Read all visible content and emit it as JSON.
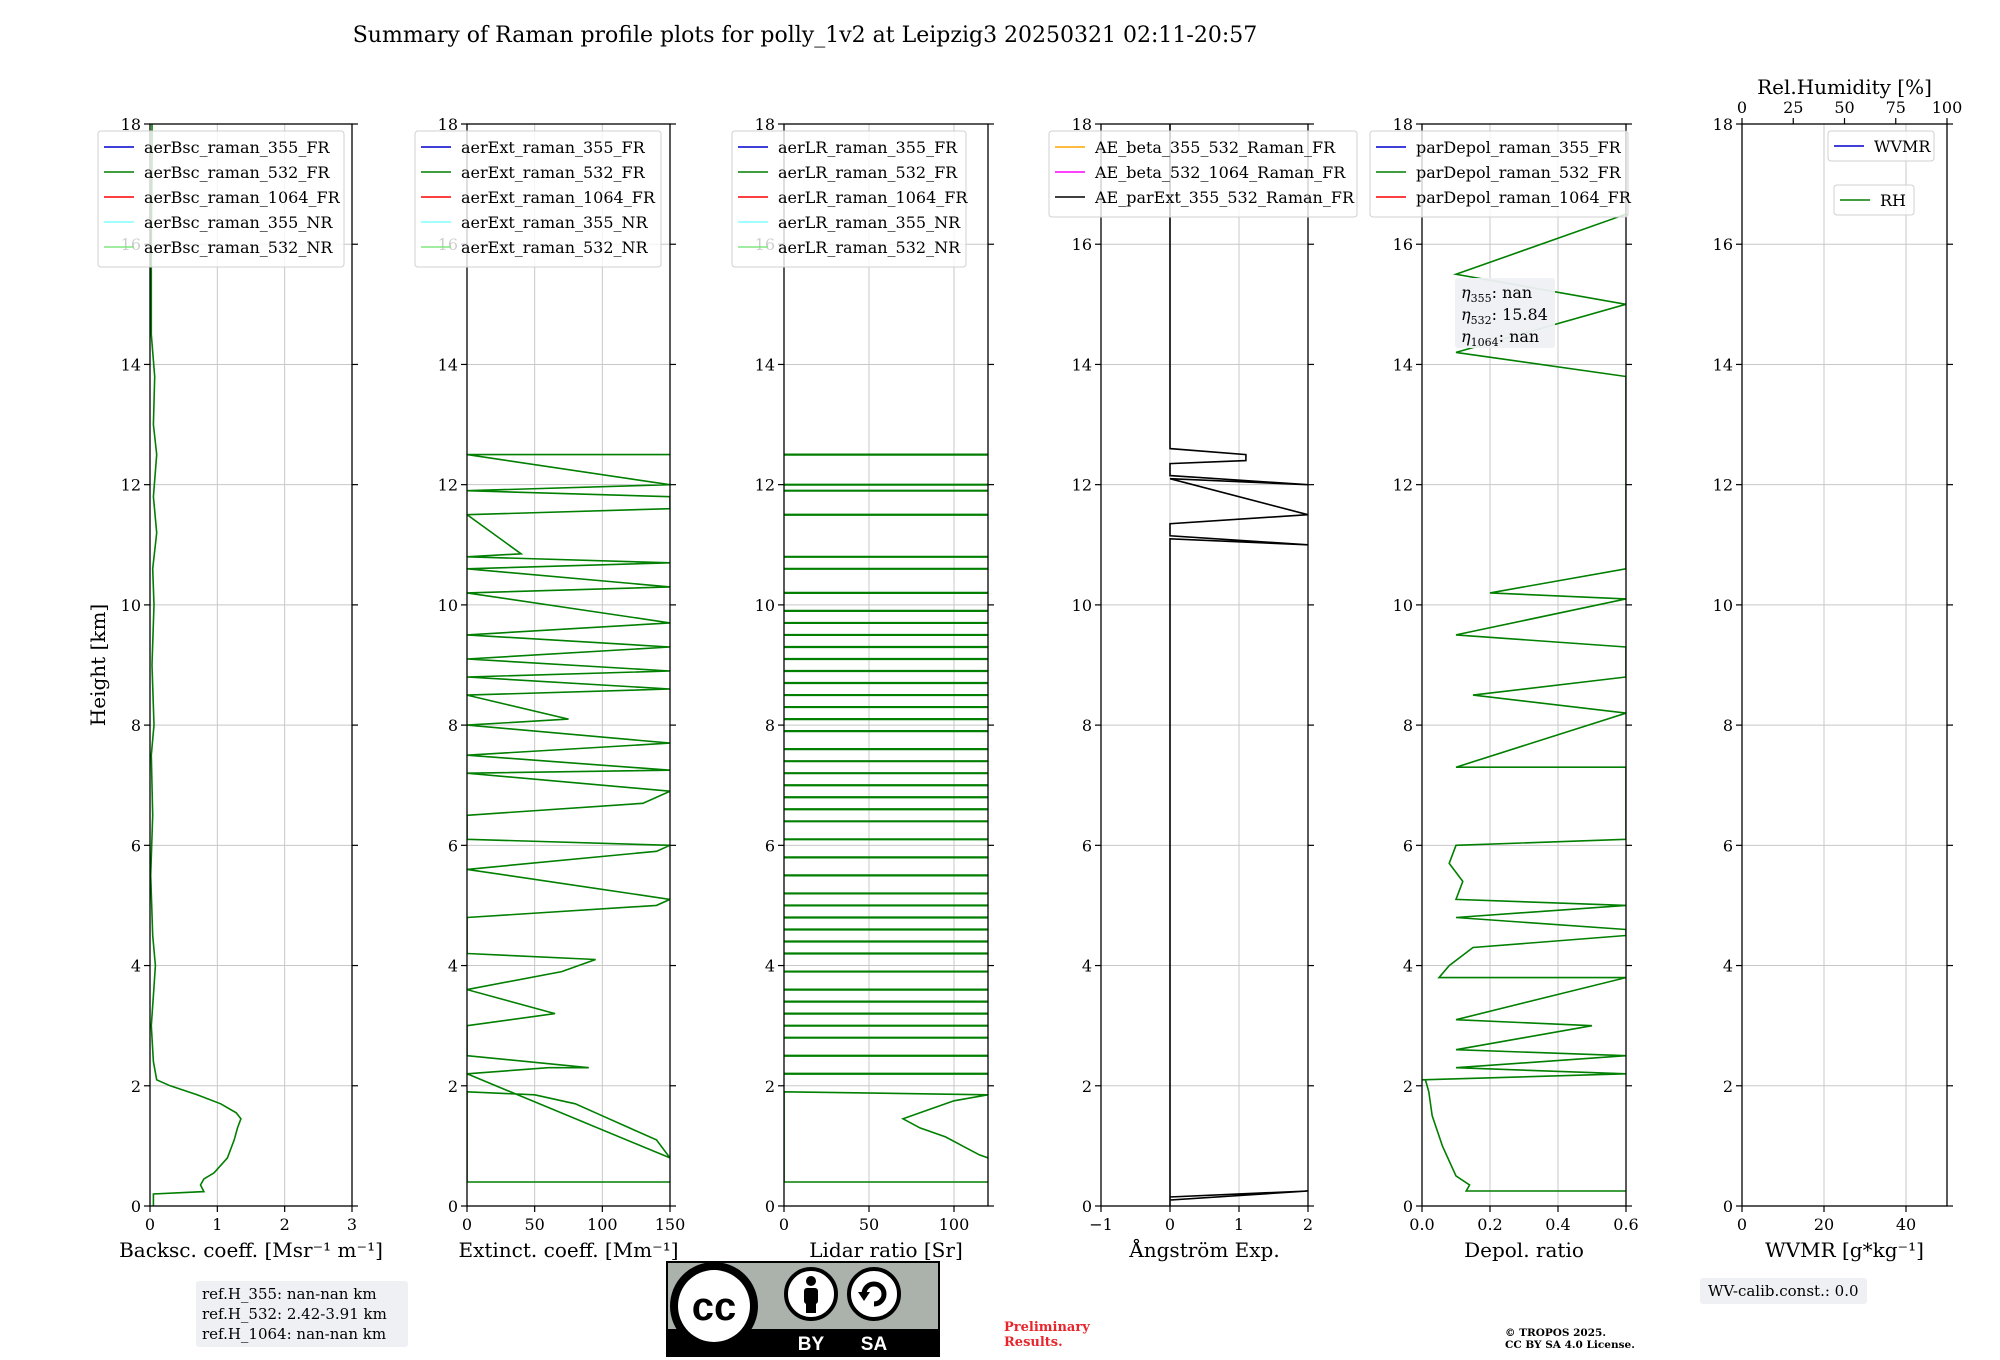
{
  "figure_title": "Summary of Raman profile plots for polly_1v2 at Leipzig3 20250321 02:11-20:57",
  "ref_heights": [
    "ref.H_355: nan-nan km",
    "ref.H_532: 2.42-3.91 km",
    "ref.H_1064: nan-nan km"
  ],
  "wv_calib": "WV-calib.const.: 0.0",
  "eta_lines": [
    {
      "sym": "η",
      "sub": "355",
      "val": ": nan"
    },
    {
      "sym": "η",
      "sub": "532",
      "val": ": 15.84"
    },
    {
      "sym": "η",
      "sub": "1064",
      "val": ": nan"
    }
  ],
  "license_badge": {
    "by": "BY",
    "sa": "SA"
  },
  "preliminary": [
    "Preliminary",
    "Results."
  ],
  "copyright": [
    "© TROPOS 2025.",
    "CC BY SA 4.0 License."
  ],
  "colors": {
    "blue": "#0000cc",
    "green": "#007f00",
    "red": "#ff0000",
    "cyan": "#80ffff",
    "lightgreen": "#80e680",
    "orange": "#ffa500",
    "magenta": "#ff00ff",
    "black": "#000000",
    "grid": "#c8c8c8"
  },
  "chart_data": [
    {
      "type": "line",
      "xlabel": "Backsc. coeff. [Msr⁻¹ m⁻¹]",
      "ylabel": "Height [km]",
      "xlim": [
        0,
        3
      ],
      "ylim": [
        0,
        18
      ],
      "xticks": [
        "0",
        "1",
        "2",
        "3"
      ],
      "yticks": [
        "0",
        "2",
        "4",
        "6",
        "8",
        "10",
        "12",
        "14",
        "16",
        "18"
      ],
      "grid": true,
      "legend_position": "top-left",
      "series": [
        {
          "name": "aerBsc_raman_355_FR",
          "color": "blue",
          "values": []
        },
        {
          "name": "aerBsc_raman_532_FR",
          "color": "green",
          "profile": [
            [
              0.05,
              0.0
            ],
            [
              0.05,
              0.2
            ],
            [
              0.8,
              0.24
            ],
            [
              0.75,
              0.35
            ],
            [
              0.8,
              0.45
            ],
            [
              0.95,
              0.55
            ],
            [
              1.15,
              0.8
            ],
            [
              1.25,
              1.1
            ],
            [
              1.3,
              1.3
            ],
            [
              1.35,
              1.45
            ],
            [
              1.28,
              1.55
            ],
            [
              1.05,
              1.7
            ],
            [
              0.7,
              1.85
            ],
            [
              0.3,
              2.0
            ],
            [
              0.1,
              2.1
            ],
            [
              0.05,
              2.4
            ],
            [
              0.02,
              3.0
            ],
            [
              0.05,
              3.5
            ],
            [
              0.08,
              4.0
            ],
            [
              0.04,
              4.5
            ],
            [
              0.01,
              5.5
            ],
            [
              0.04,
              6.5
            ],
            [
              0.02,
              7.5
            ],
            [
              0.06,
              8.0
            ],
            [
              0.03,
              9.0
            ],
            [
              0.06,
              10.0
            ],
            [
              0.04,
              10.6
            ],
            [
              0.1,
              11.2
            ],
            [
              0.05,
              11.8
            ],
            [
              0.1,
              12.5
            ],
            [
              0.05,
              13.0
            ],
            [
              0.07,
              13.8
            ],
            [
              0.02,
              14.5
            ],
            [
              0.02,
              16.0
            ],
            [
              0.03,
              17.5
            ],
            [
              0.03,
              18.0
            ]
          ]
        },
        {
          "name": "aerBsc_raman_1064_FR",
          "color": "red",
          "values": []
        },
        {
          "name": "aerBsc_raman_355_NR",
          "color": "cyan",
          "values": []
        },
        {
          "name": "aerBsc_raman_532_NR",
          "color": "lightgreen",
          "values": []
        }
      ]
    },
    {
      "type": "line",
      "xlabel": "Extinct. coeff. [Mm⁻¹]",
      "xlim": [
        0,
        150
      ],
      "ylim": [
        0,
        18
      ],
      "xticks": [
        "0",
        "50",
        "100",
        "150"
      ],
      "yticks": [
        "0",
        "2",
        "4",
        "6",
        "8",
        "10",
        "12",
        "14",
        "16",
        "18"
      ],
      "grid": true,
      "legend_position": "top-left",
      "series": [
        {
          "name": "aerExt_raman_355_FR",
          "color": "blue",
          "values": []
        },
        {
          "name": "aerExt_raman_532_FR",
          "color": "green",
          "profile": [
            [
              150,
              0.4
            ],
            [
              0,
              0.4
            ],
            [
              0,
              1.9
            ],
            [
              50,
              1.85
            ],
            [
              80,
              1.7
            ],
            [
              100,
              1.5
            ],
            [
              120,
              1.3
            ],
            [
              140,
              1.1
            ],
            [
              150,
              0.8
            ],
            [
              0,
              2.2
            ],
            [
              60,
              2.3
            ],
            [
              90,
              2.3
            ],
            [
              0,
              2.5
            ],
            [
              0,
              3.0
            ],
            [
              65,
              3.2
            ],
            [
              0,
              3.6
            ],
            [
              70,
              3.9
            ],
            [
              95,
              4.1
            ],
            [
              0,
              4.2
            ],
            [
              0,
              4.8
            ],
            [
              140,
              5.0
            ],
            [
              150,
              5.1
            ],
            [
              0,
              5.6
            ],
            [
              140,
              5.9
            ],
            [
              150,
              6.0
            ],
            [
              0,
              6.1
            ],
            [
              0,
              6.5
            ],
            [
              130,
              6.7
            ],
            [
              150,
              6.9
            ],
            [
              0,
              7.2
            ],
            [
              150,
              7.25
            ],
            [
              0,
              7.5
            ],
            [
              150,
              7.7
            ],
            [
              0,
              8.0
            ],
            [
              75,
              8.1
            ],
            [
              0,
              8.5
            ],
            [
              150,
              8.6
            ],
            [
              0,
              8.8
            ],
            [
              150,
              8.9
            ],
            [
              0,
              9.1
            ],
            [
              150,
              9.3
            ],
            [
              0,
              9.5
            ],
            [
              150,
              9.7
            ],
            [
              0,
              10.2
            ],
            [
              150,
              10.3
            ],
            [
              0,
              10.6
            ],
            [
              150,
              10.7
            ],
            [
              0,
              10.8
            ],
            [
              40,
              10.85
            ],
            [
              0,
              11.5
            ],
            [
              150,
              11.6
            ],
            [
              150,
              11.8
            ],
            [
              0,
              11.9
            ],
            [
              150,
              12.0
            ],
            [
              0,
              12.5
            ],
            [
              150,
              12.5
            ]
          ]
        },
        {
          "name": "aerExt_raman_1064_FR",
          "color": "red",
          "values": []
        },
        {
          "name": "aerExt_raman_355_NR",
          "color": "cyan",
          "values": []
        },
        {
          "name": "aerExt_raman_532_NR",
          "color": "lightgreen",
          "values": []
        }
      ]
    },
    {
      "type": "line",
      "xlabel": "Lidar ratio [Sr]",
      "xlim": [
        0,
        120
      ],
      "ylim": [
        0,
        18
      ],
      "xticks": [
        "0",
        "50",
        "100"
      ],
      "yticks": [
        "0",
        "2",
        "4",
        "6",
        "8",
        "10",
        "12",
        "14",
        "16",
        "18"
      ],
      "grid": true,
      "legend_position": "top-left",
      "series": [
        {
          "name": "aerLR_raman_355_FR",
          "color": "blue",
          "values": []
        },
        {
          "name": "aerLR_raman_532_FR",
          "color": "green",
          "profile": [
            [
              120,
              0.4
            ],
            [
              0,
              0.4
            ],
            [
              0,
              1.9
            ],
            [
              120,
              1.85
            ],
            [
              100,
              1.75
            ],
            [
              85,
              1.6
            ],
            [
              70,
              1.45
            ],
            [
              80,
              1.3
            ],
            [
              95,
              1.15
            ],
            [
              105,
              1.0
            ],
            [
              115,
              0.85
            ],
            [
              120,
              0.8
            ]
          ],
          "hlines": [
            2.2,
            2.5,
            2.8,
            3.0,
            3.2,
            3.4,
            3.6,
            3.9,
            4.2,
            4.4,
            4.6,
            4.8,
            5.0,
            5.2,
            5.5,
            5.8,
            6.1,
            6.4,
            6.6,
            6.8,
            7.0,
            7.2,
            7.4,
            7.6,
            7.9,
            8.1,
            8.3,
            8.5,
            8.7,
            8.9,
            9.1,
            9.3,
            9.5,
            9.7,
            9.9,
            10.2,
            10.6,
            10.8,
            11.5,
            11.9,
            12.0,
            12.5
          ]
        },
        {
          "name": "aerLR_raman_1064_FR",
          "color": "red",
          "values": []
        },
        {
          "name": "aerLR_raman_355_NR",
          "color": "cyan",
          "values": []
        },
        {
          "name": "aerLR_raman_532_NR",
          "color": "lightgreen",
          "values": []
        }
      ]
    },
    {
      "type": "line",
      "xlabel": "Ångström Exp.",
      "xlim": [
        -1,
        2
      ],
      "ylim": [
        0,
        18
      ],
      "xticks": [
        "−1",
        "0",
        "1",
        "2"
      ],
      "yticks": [
        "0",
        "2",
        "4",
        "6",
        "8",
        "10",
        "12",
        "14",
        "16",
        "18"
      ],
      "grid": true,
      "legend_position": "top-left",
      "series": [
        {
          "name": "AE_beta_355_532_Raman_FR",
          "color": "orange",
          "values": []
        },
        {
          "name": "AE_beta_532_1064_Raman_FR",
          "color": "magenta",
          "values": []
        },
        {
          "name": "AE_parExt_355_532_Raman_FR",
          "color": "black",
          "profile": [
            [
              0,
              0.0
            ],
            [
              0,
              0.15
            ],
            [
              2,
              0.25
            ],
            [
              0,
              0.1
            ],
            [
              0,
              11.1
            ],
            [
              2,
              11.0
            ],
            [
              0,
              11.15
            ],
            [
              0,
              11.35
            ],
            [
              2,
              11.5
            ],
            [
              0,
              12.1
            ],
            [
              2,
              12.0
            ],
            [
              0,
              12.15
            ],
            [
              0,
              12.35
            ],
            [
              1.1,
              12.4
            ],
            [
              1.1,
              12.5
            ],
            [
              0,
              12.6
            ],
            [
              0,
              18.0
            ]
          ]
        }
      ]
    },
    {
      "type": "line",
      "xlabel": "Depol. ratio",
      "xlim": [
        0,
        0.6
      ],
      "ylim": [
        0,
        18
      ],
      "xticks": [
        "0.0",
        "0.2",
        "0.4",
        "0.6"
      ],
      "yticks": [
        "0",
        "2",
        "4",
        "6",
        "8",
        "10",
        "12",
        "14",
        "16",
        "18"
      ],
      "grid": true,
      "legend_position": "top-left",
      "series": [
        {
          "name": "parDepol_raman_355_FR",
          "color": "blue",
          "values": []
        },
        {
          "name": "parDepol_raman_532_FR",
          "color": "green",
          "profile": [
            [
              0.6,
              0.25
            ],
            [
              0.13,
              0.25
            ],
            [
              0.14,
              0.35
            ],
            [
              0.1,
              0.5
            ],
            [
              0.06,
              1.0
            ],
            [
              0.03,
              1.5
            ],
            [
              0.02,
              1.9
            ],
            [
              0.01,
              2.1
            ],
            [
              0,
              2.1
            ],
            [
              0.6,
              2.2
            ],
            [
              0.1,
              2.3
            ],
            [
              0.6,
              2.5
            ],
            [
              0.1,
              2.6
            ],
            [
              0.3,
              2.8
            ],
            [
              0.5,
              3.0
            ],
            [
              0.1,
              3.1
            ],
            [
              0.6,
              3.8
            ],
            [
              0.05,
              3.8
            ],
            [
              0.08,
              4.0
            ],
            [
              0.15,
              4.3
            ],
            [
              0.6,
              4.5
            ],
            [
              0.6,
              4.6
            ],
            [
              0.1,
              4.8
            ],
            [
              0.6,
              5.0
            ],
            [
              0.1,
              5.1
            ],
            [
              0.12,
              5.4
            ],
            [
              0.08,
              5.7
            ],
            [
              0.1,
              6.0
            ],
            [
              0.6,
              6.1
            ],
            [
              0.6,
              6.3
            ],
            [
              0.6,
              6.5
            ],
            [
              0.6,
              6.6
            ],
            [
              0.6,
              7.0
            ],
            [
              0.6,
              7.3
            ],
            [
              0.1,
              7.3
            ],
            [
              0.6,
              8.2
            ],
            [
              0.15,
              8.5
            ],
            [
              0.6,
              8.8
            ],
            [
              0.6,
              9.0
            ],
            [
              0.6,
              9.3
            ],
            [
              0.1,
              9.5
            ],
            [
              0.6,
              10.1
            ],
            [
              0.2,
              10.2
            ],
            [
              0.6,
              10.6
            ],
            [
              0.6,
              11.4
            ],
            [
              0.6,
              11.5
            ],
            [
              0.6,
              11.9
            ],
            [
              0.6,
              12.1
            ],
            [
              0.6,
              12.8
            ],
            [
              0.6,
              13.6
            ],
            [
              0.6,
              13.8
            ],
            [
              0.1,
              14.2
            ],
            [
              0.6,
              15.0
            ],
            [
              0.1,
              15.5
            ],
            [
              0.6,
              16.5
            ],
            [
              0.6,
              17.1
            ],
            [
              0.6,
              17.9
            ]
          ]
        },
        {
          "name": "parDepol_raman_1064_FR",
          "color": "red",
          "values": []
        }
      ]
    },
    {
      "type": "line",
      "xlabel": "WVMR [g*kg⁻¹]",
      "top_xlabel": "Rel.Humidity [%]",
      "xlim": [
        0,
        50
      ],
      "top_xlim": [
        0,
        100
      ],
      "ylim": [
        0,
        18
      ],
      "xticks": [
        "0",
        "20",
        "40"
      ],
      "top_xticks": [
        "0",
        "25",
        "50",
        "75",
        "100"
      ],
      "yticks": [
        "0",
        "2",
        "4",
        "6",
        "8",
        "10",
        "12",
        "14",
        "16",
        "18"
      ],
      "grid": true,
      "legend_position": "top-right",
      "series": [
        {
          "name": "WVMR",
          "color": "blue",
          "values": []
        },
        {
          "name": "RH",
          "color": "green",
          "values": []
        }
      ]
    }
  ]
}
